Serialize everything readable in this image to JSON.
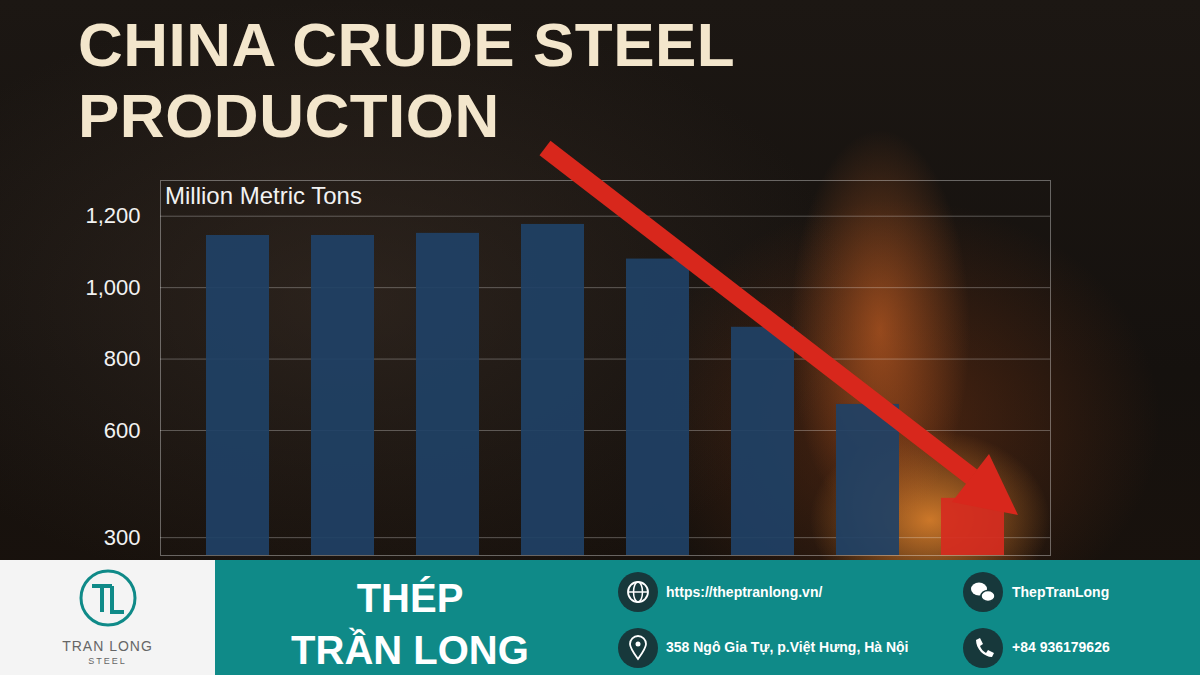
{
  "chart_data": {
    "type": "bar",
    "title": "CHINA CRUDE STEEL PRODUCTION",
    "y_label": "Million Metric Tons",
    "categories": [
      null,
      null,
      null,
      null,
      null,
      null,
      null,
      null
    ],
    "values": [
      1146,
      1146,
      1152,
      1177,
      1080,
      889,
      673,
      410
    ],
    "colors": [
      "#1f4166",
      "#1f4166",
      "#1f4166",
      "#1f4166",
      "#1f4166",
      "#1f4166",
      "#1f4166",
      "#d62b1f"
    ],
    "ylim": [
      250,
      1300
    ],
    "yticks": [
      {
        "value": 1200,
        "label": "1,200"
      },
      {
        "value": 1000,
        "label": "1,000"
      },
      800,
      600,
      300
    ],
    "grid": true,
    "tick_labels": "y"
  },
  "footer": {
    "logo_name": "TRAN LONG",
    "logo_sub": "STEEL",
    "brand_lines": [
      "THÉP",
      "TRẦN LONG"
    ],
    "website": "https://theptranlong.vn/",
    "address": "358 Ngô Gia Tự, p.Việt Hưng, Hà Nội",
    "social": "ThepTranLong",
    "phone": "+84 936179626"
  }
}
